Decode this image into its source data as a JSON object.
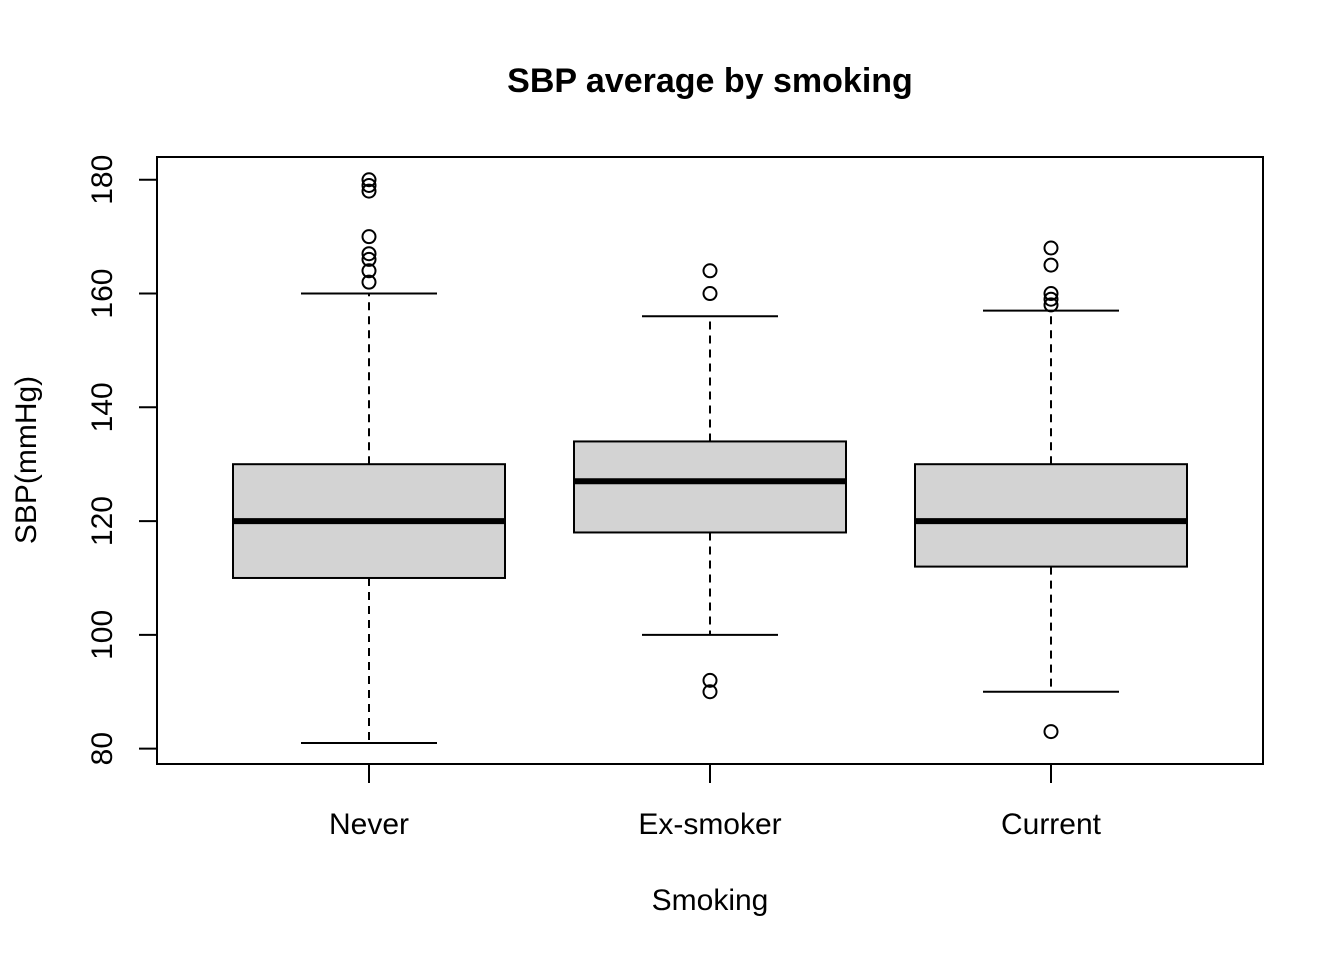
{
  "chart_data": {
    "type": "boxplot",
    "title": "SBP average by smoking",
    "xlabel": "Smoking",
    "ylabel": "SBP(mmHg)",
    "ylim": [
      77.3,
      184
    ],
    "yticks": [
      "80",
      "100",
      "120",
      "140",
      "160",
      "180"
    ],
    "grid": false,
    "box_fill": "#d3d3d3",
    "categories": [
      "Never",
      "Ex-smoker",
      "Current"
    ],
    "boxes": [
      {
        "category": "Never",
        "whisker_low": 81,
        "q1": 110,
        "median": 120,
        "q3": 130,
        "whisker_high": 160,
        "outliers": [
          162,
          164,
          166,
          167,
          170,
          178,
          179,
          180
        ]
      },
      {
        "category": "Ex-smoker",
        "whisker_low": 100,
        "q1": 118,
        "median": 127,
        "q3": 134,
        "whisker_high": 156,
        "outliers": [
          90,
          92,
          160,
          164
        ]
      },
      {
        "category": "Current",
        "whisker_low": 90,
        "q1": 112,
        "median": 120,
        "q3": 130,
        "whisker_high": 157,
        "outliers": [
          83,
          158,
          159,
          160,
          165,
          168
        ]
      }
    ]
  }
}
